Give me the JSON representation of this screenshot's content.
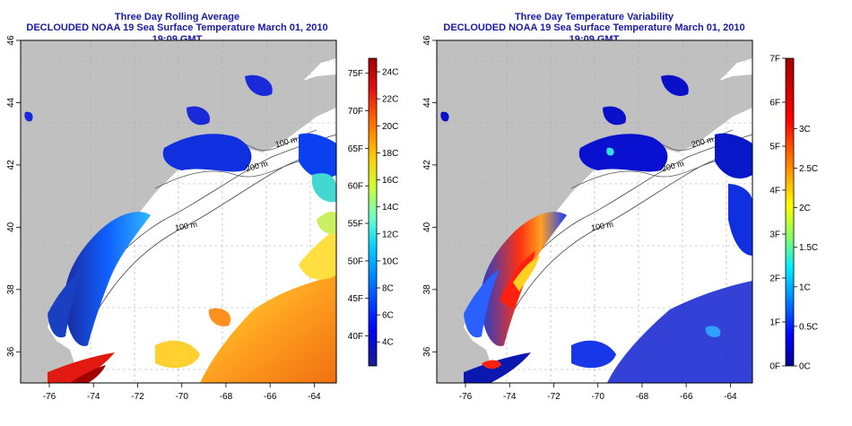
{
  "left_panel": {
    "title": "Three Day Rolling Average",
    "subtitle": "DECLOUDED NOAA 19 Sea Surface Temperature March 01, 2010 19:09 GMT",
    "colorbar": {
      "units_f": [
        "40F",
        "45F",
        "50F",
        "55F",
        "60F",
        "65F",
        "70F",
        "75F"
      ],
      "units_c": [
        "4C",
        "6C",
        "8C",
        "10C",
        "12C",
        "14C",
        "16C",
        "18C",
        "20C",
        "22C",
        "24C"
      ],
      "range_f": [
        36,
        77
      ]
    }
  },
  "right_panel": {
    "title": "Three Day Temperature Variability",
    "subtitle": "DECLOUDED NOAA 19 Sea Surface Temperature March 01, 2010 19:09 GMT",
    "colorbar": {
      "units_f": [
        "0F",
        "1F",
        "2F",
        "3F",
        "4F",
        "5F",
        "6F",
        "7F"
      ],
      "units_c": [
        "0C",
        "0.5C",
        "1C",
        "1.5C",
        "2C",
        "2.5C",
        "3C"
      ],
      "range_f": [
        0,
        7
      ]
    }
  },
  "map_axes": {
    "lon_ticks": [
      "-76",
      "-74",
      "-72",
      "-70",
      "-68",
      "-66",
      "-64"
    ],
    "lat_ticks": [
      "36",
      "38",
      "40",
      "42",
      "44",
      "46"
    ],
    "lon_range": [
      -77.3,
      -63.0
    ],
    "lat_range": [
      35.0,
      46.0
    ]
  },
  "contour_labels": [
    "100 m",
    "200 m",
    "100 m",
    "200 m",
    "200 m",
    "100 m"
  ],
  "colors": {
    "title": "#1a1aa8",
    "land": "#c0c0c0",
    "cloud": "#ffffff",
    "sst_scale": [
      "#1a1a8c",
      "#0000ff",
      "#0066ff",
      "#00ccff",
      "#66ffcc",
      "#ccff33",
      "#ffcc00",
      "#ff6600",
      "#e01010",
      "#a00000"
    ],
    "variability_scale": [
      "#00008c",
      "#0000ff",
      "#0088ff",
      "#00eeff",
      "#88ff66",
      "#ffff00",
      "#ff8800",
      "#ff0000",
      "#a00000"
    ]
  }
}
